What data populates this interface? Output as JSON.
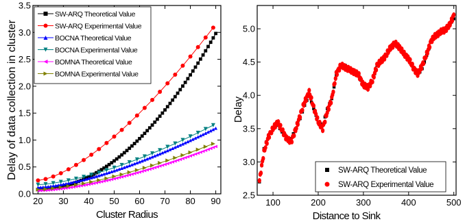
{
  "chart_data": [
    {
      "type": "line",
      "xlabel": "Cluster Radius",
      "ylabel": "Delay of data collection in cluster",
      "xlim": [
        18,
        92
      ],
      "ylim": [
        0.0,
        3.5
      ],
      "xticks": [
        20,
        30,
        40,
        50,
        60,
        70,
        80,
        90
      ],
      "yticks": [
        0.0,
        0.5,
        1.0,
        1.5,
        2.0,
        2.5,
        3.0,
        3.5
      ],
      "xtick_labels": [
        "20",
        "30",
        "40",
        "50",
        "60",
        "70",
        "80",
        "90"
      ],
      "ytick_labels": [
        "0.0",
        "0.5",
        "1.0",
        "1.5",
        "2.0",
        "2.5",
        "3.0",
        "3.5"
      ],
      "legend_position": "top-left",
      "series": [
        {
          "name": "SW-ARQ Theoretical Value",
          "color": "#000000",
          "marker": "square",
          "x0": 20,
          "x1": 90,
          "step": 1,
          "y0": 0.08,
          "y1": 2.98,
          "curve": 2.0
        },
        {
          "name": "SW-ARQ Experimental Value",
          "color": "#ff0000",
          "marker": "circle",
          "x0": 20,
          "x1": 90,
          "step": 3,
          "y0": 0.25,
          "y1": 3.15,
          "curve": 1.5
        },
        {
          "name": "BOCNA Theoretical Value",
          "color": "#0000ff",
          "marker": "triangle-up",
          "x0": 20,
          "x1": 90,
          "step": 1,
          "y0": 0.12,
          "y1": 1.22,
          "curve": 1.5
        },
        {
          "name": "BOCNA Experimental Value",
          "color": "#008080",
          "marker": "triangle-down",
          "x0": 20,
          "x1": 90,
          "step": 3,
          "y0": 0.17,
          "y1": 1.3,
          "curve": 1.5
        },
        {
          "name": "BOMNA Theoretical Value",
          "color": "#ff00ff",
          "marker": "triangle-left",
          "x0": 20,
          "x1": 90,
          "step": 1,
          "y0": 0.06,
          "y1": 0.88,
          "curve": 1.55
        },
        {
          "name": "BOMNA Experimental Value",
          "color": "#808000",
          "marker": "triangle-right",
          "x0": 20,
          "x1": 90,
          "step": 3,
          "y0": 0.08,
          "y1": 0.95,
          "curve": 1.5
        }
      ]
    },
    {
      "type": "scatter",
      "xlabel": "Distance to Sink",
      "ylabel": "Delay",
      "xlim": [
        65,
        505
      ],
      "ylim": [
        2.5,
        5.35
      ],
      "xticks": [
        100,
        200,
        300,
        400,
        500
      ],
      "yticks": [
        2.5,
        3.0,
        3.5,
        4.0,
        4.5,
        5.0
      ],
      "xtick_labels": [
        "100",
        "200",
        "300",
        "400",
        "500"
      ],
      "ytick_labels": [
        "2.5",
        "3.0",
        "3.5",
        "4.0",
        "4.5",
        "5.0"
      ],
      "legend_position": "bottom-right",
      "series": [
        {
          "name": "SW-ARQ Theoretical Value",
          "color": "#000000",
          "marker": "square",
          "x": [
            70,
            80,
            90,
            100,
            110,
            120,
            130,
            140,
            150,
            160,
            170,
            180,
            190,
            200,
            210,
            220,
            230,
            240,
            250,
            260,
            270,
            280,
            290,
            300,
            310,
            320,
            330,
            340,
            350,
            360,
            370,
            380,
            390,
            400,
            410,
            420,
            430,
            440,
            450,
            460,
            470,
            480,
            490,
            500
          ],
          "y": [
            2.7,
            3.2,
            3.4,
            3.5,
            3.55,
            3.45,
            3.35,
            3.35,
            3.5,
            3.65,
            3.85,
            4.0,
            3.8,
            3.6,
            3.55,
            3.8,
            3.95,
            4.3,
            4.45,
            4.45,
            4.4,
            4.35,
            4.3,
            4.15,
            4.1,
            4.2,
            4.45,
            4.5,
            4.6,
            4.7,
            4.75,
            4.7,
            4.65,
            4.55,
            4.4,
            4.3,
            4.4,
            4.6,
            4.8,
            4.9,
            4.95,
            5.0,
            5.05,
            5.15
          ]
        },
        {
          "name": "SW-ARQ Experimental Value",
          "color": "#ff0000",
          "marker": "circle",
          "x": [
            70,
            80,
            90,
            100,
            110,
            120,
            130,
            140,
            150,
            160,
            170,
            180,
            190,
            200,
            210,
            220,
            230,
            240,
            250,
            260,
            270,
            280,
            290,
            300,
            310,
            320,
            330,
            340,
            350,
            360,
            370,
            380,
            390,
            400,
            410,
            420,
            430,
            440,
            450,
            460,
            470,
            480,
            490,
            500
          ],
          "y": [
            2.72,
            3.15,
            3.38,
            3.5,
            3.6,
            3.48,
            3.35,
            3.3,
            3.48,
            3.7,
            3.9,
            4.05,
            3.82,
            3.6,
            3.5,
            3.75,
            3.95,
            4.32,
            4.45,
            4.42,
            4.38,
            4.35,
            4.3,
            4.15,
            4.12,
            4.22,
            4.45,
            4.52,
            4.6,
            4.72,
            4.78,
            4.72,
            4.62,
            4.55,
            4.42,
            4.32,
            4.45,
            4.62,
            4.82,
            4.9,
            4.95,
            4.98,
            5.05,
            5.2
          ]
        }
      ]
    }
  ]
}
